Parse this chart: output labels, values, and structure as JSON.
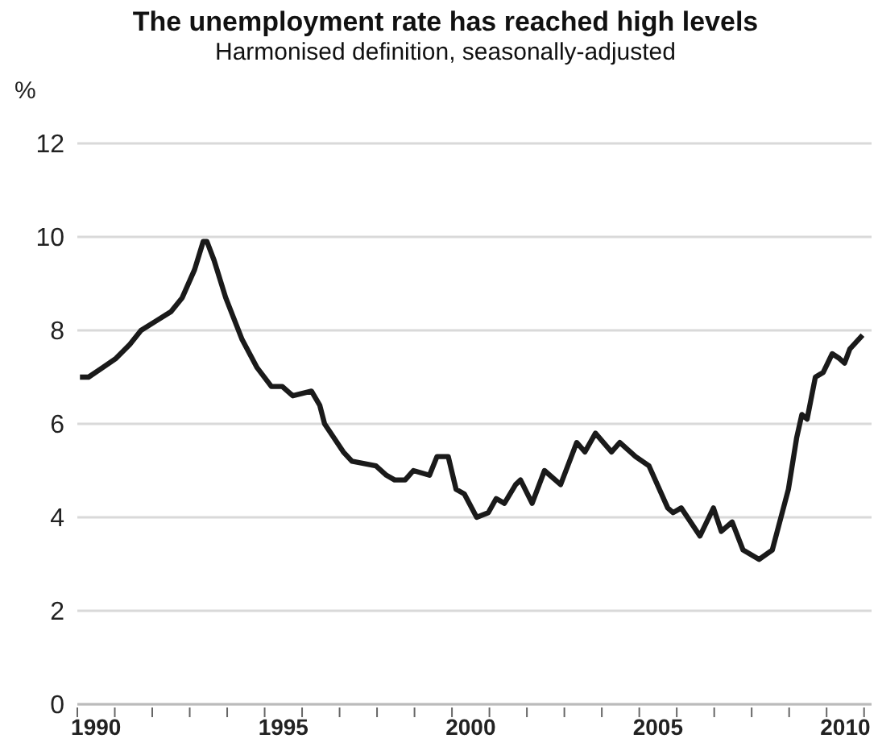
{
  "chart_data": {
    "type": "line",
    "title": "The unemployment rate has reached high levels",
    "subtitle": "Harmonised definition, seasonally-adjusted",
    "ylabel": "%",
    "xlim": [
      1990,
      2011.2
    ],
    "xticks": [
      {
        "value": 1990,
        "label": null
      },
      {
        "value": 1991,
        "label": null
      },
      {
        "value": 1992,
        "label": null
      },
      {
        "value": 1993,
        "label": null
      },
      {
        "value": 1994,
        "label": null
      },
      {
        "value": 1995,
        "label": null
      },
      {
        "value": 1996,
        "label": null
      },
      {
        "value": 1997,
        "label": null
      },
      {
        "value": 1998,
        "label": null
      },
      {
        "value": 1999,
        "label": null
      },
      {
        "value": 2000,
        "label": null
      },
      {
        "value": 2001,
        "label": null
      },
      {
        "value": 2002,
        "label": null
      },
      {
        "value": 2003,
        "label": null
      },
      {
        "value": 2004,
        "label": null
      },
      {
        "value": 2005,
        "label": null
      },
      {
        "value": 2006,
        "label": null
      },
      {
        "value": 2007,
        "label": null
      },
      {
        "value": 2008,
        "label": null
      },
      {
        "value": 2009,
        "label": null
      },
      {
        "value": 2010,
        "label": null
      },
      {
        "value": 2011,
        "label": null
      },
      {
        "value": 1990.5,
        "label": "1990"
      },
      {
        "value": 1995.5,
        "label": "1995"
      },
      {
        "value": 2000.5,
        "label": "2000"
      },
      {
        "value": 2005.5,
        "label": "2005"
      },
      {
        "value": 2010.5,
        "label": "2010"
      }
    ],
    "ylim": [
      0,
      12
    ],
    "yticks": [
      0,
      2,
      4,
      6,
      8,
      10,
      12
    ],
    "grid": "y",
    "legend": false,
    "marker": "none",
    "line_style": "solid",
    "series": [
      {
        "color": "#1a1a1a",
        "x": [
          1990.07,
          1990.3,
          1990.67,
          1991.03,
          1991.4,
          1991.7,
          1992.1,
          1992.5,
          1992.8,
          1993.13,
          1993.36,
          1993.46,
          1993.65,
          1993.96,
          1994.4,
          1994.8,
          1995.18,
          1995.47,
          1995.75,
          1996.25,
          1996.47,
          1996.6,
          1997.1,
          1997.33,
          1997.97,
          1998.25,
          1998.47,
          1998.75,
          1998.97,
          1999.4,
          1999.6,
          1999.9,
          2000.11,
          2000.33,
          2000.66,
          2000.97,
          2001.18,
          2001.4,
          2001.7,
          2001.83,
          2002.14,
          2002.47,
          2002.9,
          2003.33,
          2003.55,
          2003.83,
          2004.26,
          2004.48,
          2004.9,
          2005.26,
          2005.76,
          2005.9,
          2006.12,
          2006.62,
          2006.98,
          2007.19,
          2007.48,
          2007.77,
          2008.2,
          2008.55,
          2008.98,
          2009.2,
          2009.34,
          2009.48,
          2009.7,
          2009.91,
          2010.15,
          2010.34,
          2010.48,
          2010.62,
          2010.96
        ],
        "values": [
          7.0,
          7.0,
          7.2,
          7.4,
          7.7,
          8.0,
          8.2,
          8.4,
          8.7,
          9.3,
          9.9,
          9.9,
          9.5,
          8.7,
          7.8,
          7.2,
          6.8,
          6.8,
          6.6,
          6.7,
          6.4,
          6.0,
          5.4,
          5.2,
          5.1,
          4.9,
          4.8,
          4.8,
          5.0,
          4.9,
          5.3,
          5.3,
          4.6,
          4.5,
          4.0,
          4.1,
          4.4,
          4.3,
          4.7,
          4.8,
          4.3,
          5.0,
          4.7,
          5.6,
          5.4,
          5.8,
          5.4,
          5.6,
          5.3,
          5.1,
          4.2,
          4.1,
          4.2,
          3.6,
          4.2,
          3.7,
          3.9,
          3.3,
          3.1,
          3.3,
          4.6,
          5.7,
          6.2,
          6.1,
          7.0,
          7.1,
          7.5,
          7.4,
          7.3,
          7.6,
          7.9
        ]
      }
    ]
  }
}
